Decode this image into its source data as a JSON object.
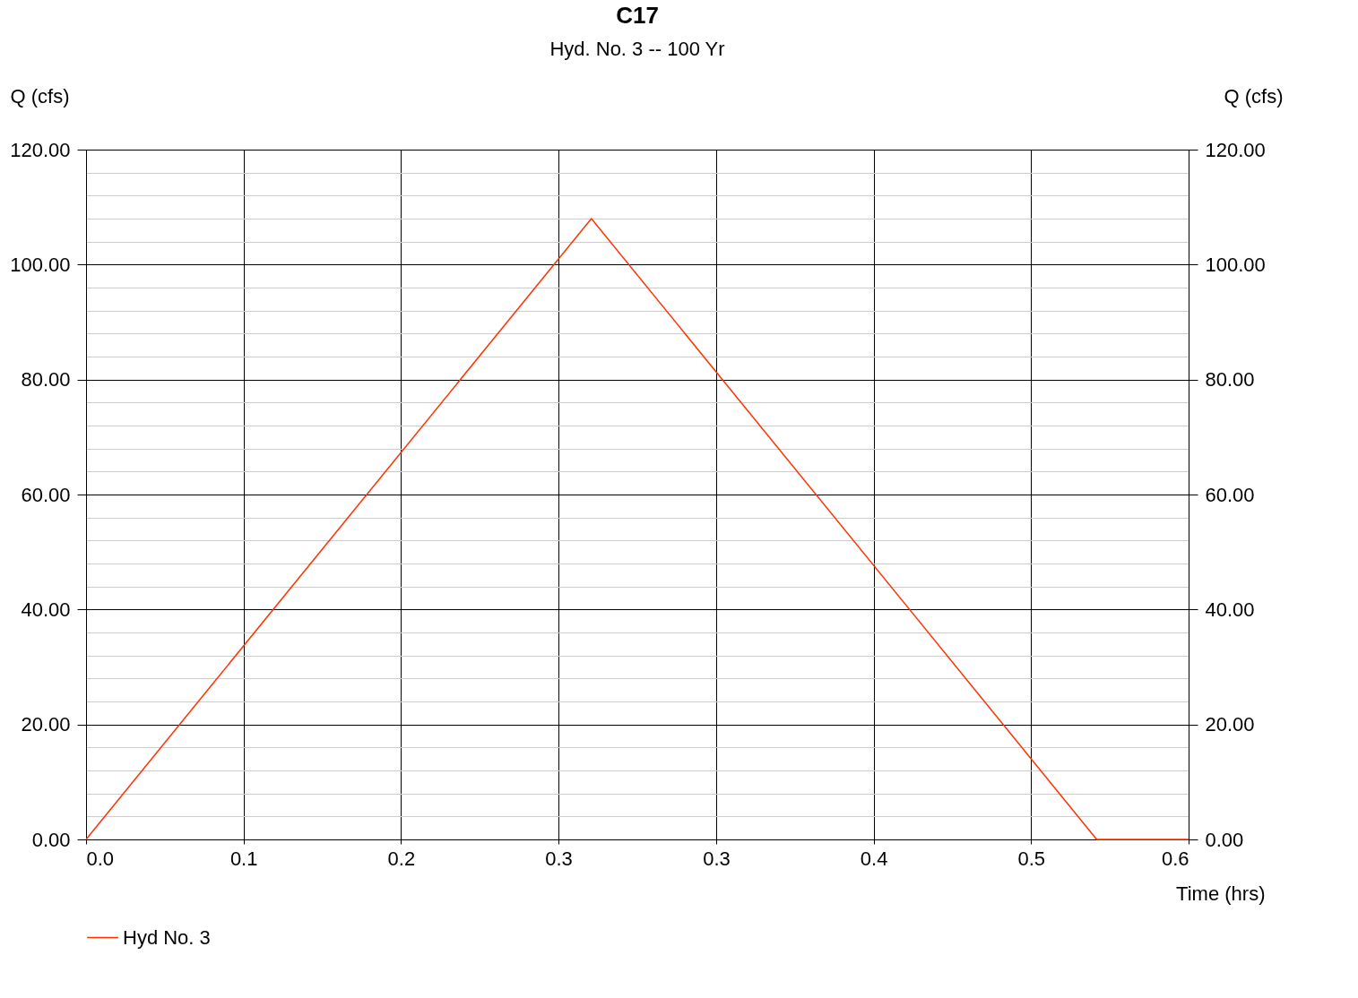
{
  "chart_data": {
    "type": "line",
    "title": "C17",
    "subtitle": "Hyd. No. 3 -- 100 Yr",
    "xlabel": "Time (hrs)",
    "ylabel": "Q (cfs)",
    "y2label": "Q (cfs)",
    "x": [
      0,
      0.275,
      0.55,
      0.6
    ],
    "series": [
      {
        "name": "Hyd No. 3",
        "color": "#ff3300",
        "values": [
          0,
          108,
          0,
          0
        ]
      }
    ],
    "xlim": [
      0,
      0.6
    ],
    "xticks": [
      {
        "value": 0,
        "label": "0.0"
      },
      {
        "value": 0.0857,
        "label": "0.1"
      },
      {
        "value": 0.1714,
        "label": "0.2"
      },
      {
        "value": 0.2571,
        "label": "0.3"
      },
      {
        "value": 0.3429,
        "label": "0.3"
      },
      {
        "value": 0.4286,
        "label": "0.4"
      },
      {
        "value": 0.5143,
        "label": "0.5"
      },
      {
        "value": 0.6,
        "label": "0.6"
      }
    ],
    "ylim": [
      0,
      120
    ],
    "yticks": [
      {
        "value": 0,
        "label": "0.00"
      },
      {
        "value": 4,
        "label": null
      },
      {
        "value": 8,
        "label": null
      },
      {
        "value": 12,
        "label": null
      },
      {
        "value": 16,
        "label": null
      },
      {
        "value": 20,
        "label": "20.00"
      },
      {
        "value": 24,
        "label": null
      },
      {
        "value": 28,
        "label": null
      },
      {
        "value": 32,
        "label": null
      },
      {
        "value": 36,
        "label": null
      },
      {
        "value": 40,
        "label": "40.00"
      },
      {
        "value": 44,
        "label": null
      },
      {
        "value": 48,
        "label": null
      },
      {
        "value": 52,
        "label": null
      },
      {
        "value": 56,
        "label": null
      },
      {
        "value": 60,
        "label": "60.00"
      },
      {
        "value": 64,
        "label": null
      },
      {
        "value": 68,
        "label": null
      },
      {
        "value": 72,
        "label": null
      },
      {
        "value": 76,
        "label": null
      },
      {
        "value": 80,
        "label": "80.00"
      },
      {
        "value": 84,
        "label": null
      },
      {
        "value": 88,
        "label": null
      },
      {
        "value": 92,
        "label": null
      },
      {
        "value": 96,
        "label": null
      },
      {
        "value": 100,
        "label": "100.00"
      },
      {
        "value": 104,
        "label": null
      },
      {
        "value": 108,
        "label": null
      },
      {
        "value": 112,
        "label": null
      },
      {
        "value": 116,
        "label": null
      },
      {
        "value": 120,
        "label": "120.00"
      }
    ],
    "y2lim": [
      0,
      120
    ],
    "y2ticks": [
      {
        "value": 0,
        "label": "0.00"
      },
      {
        "value": 20,
        "label": "20.00"
      },
      {
        "value": 40,
        "label": "40.00"
      },
      {
        "value": 60,
        "label": "60.00"
      },
      {
        "value": 80,
        "label": "80.00"
      },
      {
        "value": 100,
        "label": "100.00"
      },
      {
        "value": 120,
        "label": "120.00"
      }
    ],
    "grid": true,
    "legend": "bottom",
    "marker": "none",
    "line_style": "solid"
  }
}
